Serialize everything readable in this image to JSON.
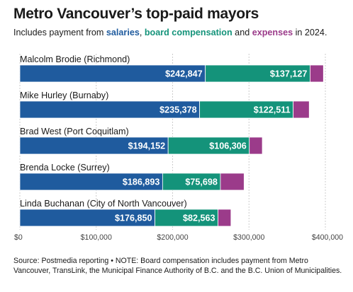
{
  "header": {
    "title": "Metro Vancouver’s top-paid mayors",
    "subtitle_pre": "Includes payment from ",
    "subtitle_k1": "salaries",
    "subtitle_sep1": ", ",
    "subtitle_k2": "board compensation",
    "subtitle_sep2": " and ",
    "subtitle_k3": "expenses",
    "subtitle_post": " in 2024."
  },
  "colors": {
    "salaries": "#1f5b9e",
    "board_compensation": "#14937a",
    "expenses": "#9b3b8a",
    "axis_text": "#444444",
    "grid": "#cccccc"
  },
  "chart_data": {
    "type": "bar",
    "orientation": "horizontal",
    "stacked": true,
    "title": "Metro Vancouver’s top-paid mayors",
    "subtitle": "Includes payment from salaries, board compensation and expenses in 2024.",
    "categories": [
      "Malcolm Brodie (Richmond)",
      "Mike Hurley (Burnaby)",
      "Brad West (Port Coquitlam)",
      "Brenda Locke (Surrey)",
      "Linda Buchanan (City of North Vancouver)"
    ],
    "series": [
      {
        "name": "salaries",
        "values": [
          242847,
          235378,
          194152,
          186893,
          176850
        ],
        "labels": [
          "$242,847",
          "$235,378",
          "$194,152",
          "$186,893",
          "$176,850"
        ]
      },
      {
        "name": "board compensation",
        "values": [
          137127,
          122511,
          106306,
          75698,
          82563
        ],
        "labels": [
          "$137,127",
          "$122,511",
          "$106,306",
          "$75,698",
          "$82,563"
        ]
      },
      {
        "name": "expenses",
        "values": [
          17500,
          21000,
          17000,
          31000,
          17000
        ]
      }
    ],
    "xlim": [
      0,
      400000
    ],
    "xticks": [
      0,
      100000,
      200000,
      300000,
      400000
    ],
    "xtick_labels": [
      "$0",
      "$100,000",
      "$200,000",
      "$300,000",
      "$400,000"
    ],
    "grid": true,
    "legend": "none (series named in subtitle)"
  },
  "footer": {
    "source": "Source: Postmedia reporting • NOTE: Board compensation includes payment from Metro Vancouver, TransLink, the Municipal Finance Authority of B.C. and the B.C. Union of Municipalities."
  }
}
